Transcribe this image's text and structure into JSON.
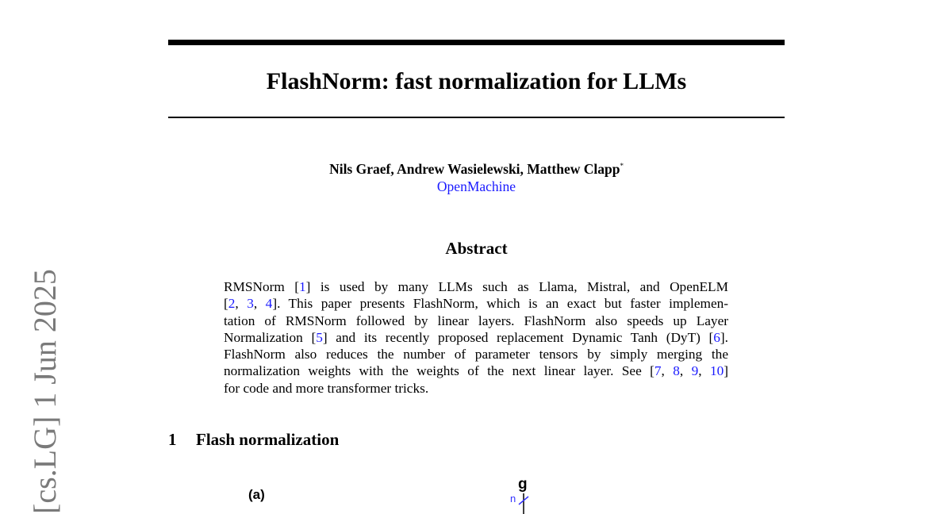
{
  "arxiv_stamp": "[cs.LG]  1 Jun 2025",
  "title": "FlashNorm: fast normalization for LLMs",
  "authors": "Nils Graef, Andrew Wasielewski, Matthew Clapp",
  "author_mark": "*",
  "affiliation": "OpenMachine",
  "abstract_heading": "Abstract",
  "abstract_lines": [
    [
      {
        "t": "RMSNorm "
      },
      {
        "t": "[",
        "c": 0
      },
      {
        "t": "1",
        "c": 1
      },
      {
        "t": "] is used by many LLMs such as Llama, Mistral, and OpenELM"
      }
    ],
    [
      {
        "t": "["
      },
      {
        "t": "2",
        "c": 1
      },
      {
        "t": ", "
      },
      {
        "t": "3",
        "c": 1
      },
      {
        "t": ", "
      },
      {
        "t": "4",
        "c": 1
      },
      {
        "t": "]. This paper presents FlashNorm, which is an exact but faster implemen-"
      }
    ],
    [
      {
        "t": "tation of RMSNorm followed by linear layers. FlashNorm also speeds up Layer"
      }
    ],
    [
      {
        "t": "Normalization ["
      },
      {
        "t": "5",
        "c": 1
      },
      {
        "t": "] and its recently proposed replacement Dynamic Tanh (DyT) ["
      },
      {
        "t": "6",
        "c": 1
      },
      {
        "t": "]."
      }
    ],
    [
      {
        "t": "FlashNorm also reduces the number of parameter tensors by simply merging the"
      }
    ],
    [
      {
        "t": "normalization weights with the weights of the next linear layer. See ["
      },
      {
        "t": "7",
        "c": 1
      },
      {
        "t": ", "
      },
      {
        "t": "8",
        "c": 1
      },
      {
        "t": ", "
      },
      {
        "t": "9",
        "c": 1
      },
      {
        "t": ", "
      },
      {
        "t": "10",
        "c": 1
      },
      {
        "t": "]"
      }
    ],
    [
      {
        "t": "for code and more transformer tricks."
      }
    ]
  ],
  "section": {
    "number": "1",
    "title": "Flash normalization"
  },
  "figure": {
    "panel_label": "(a)",
    "node_label": "g",
    "dimension_label": "n"
  },
  "colors": {
    "link": "#1a1aff",
    "stamp": "#7a7a7a"
  }
}
